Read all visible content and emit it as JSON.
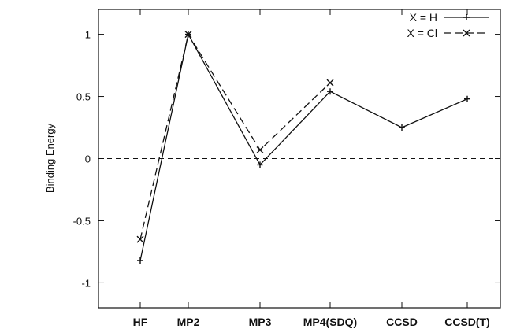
{
  "chart_data": {
    "type": "line",
    "title": "",
    "xlabel": "",
    "ylabel": "Binding Energy",
    "categories": [
      "HF",
      "MP2",
      "MP3",
      "MP4(SDQ)",
      "CCSD",
      "CCSD(T)"
    ],
    "ylim": [
      -1.2,
      1.2
    ],
    "yticks": [
      -1,
      -0.5,
      0,
      0.5,
      1
    ],
    "ytick_labels": [
      "-1",
      "-0.5",
      "0",
      "0.5",
      "1"
    ],
    "grid": false,
    "legend_position": "top-right",
    "reference_line": {
      "y": 0,
      "style": "dashed"
    },
    "series": [
      {
        "name": "X = H",
        "values": [
          -0.82,
          1.0,
          -0.05,
          0.54,
          0.25,
          0.48
        ],
        "line_style": "solid",
        "marker": "plus",
        "color": "#111111"
      },
      {
        "name": "X = Cl",
        "values": [
          -0.65,
          1.0,
          0.07,
          0.61,
          null,
          null
        ],
        "line_style": "dashed",
        "marker": "cross",
        "color": "#111111"
      }
    ]
  }
}
